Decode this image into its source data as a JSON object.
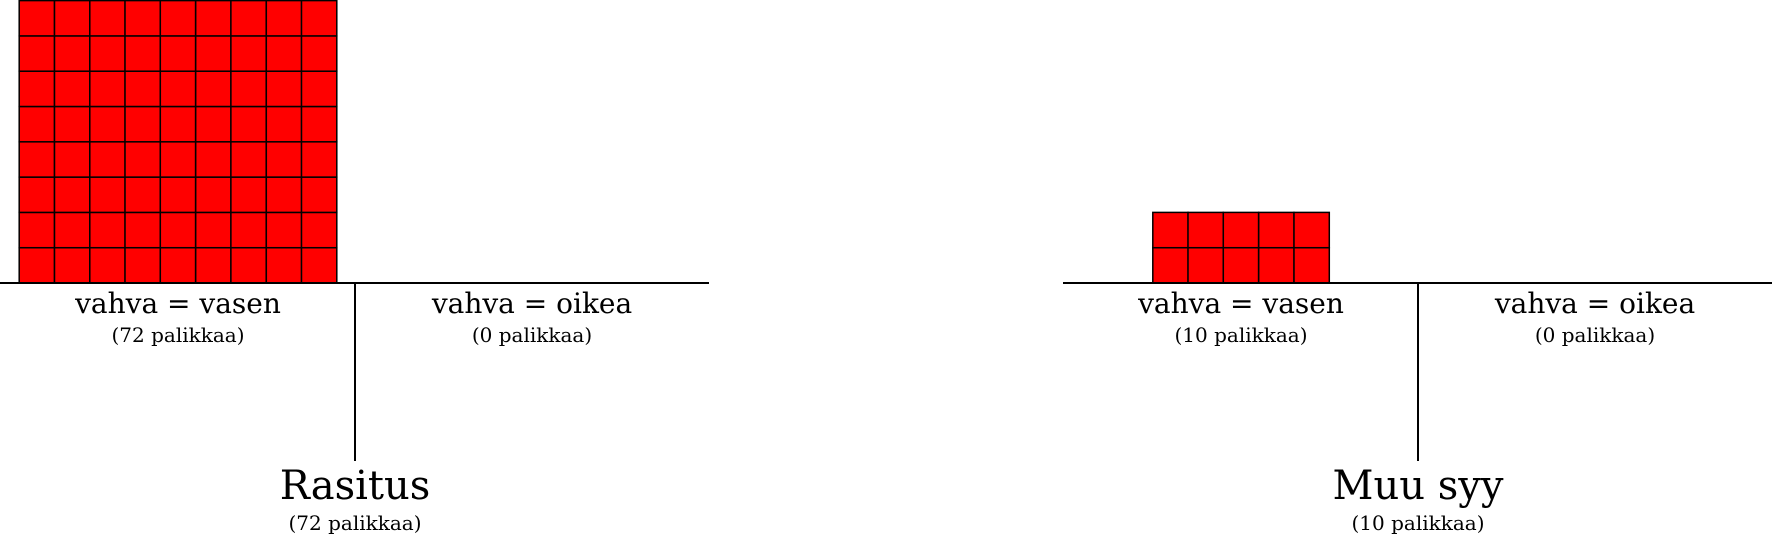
{
  "block_color": "#ff0000",
  "outline_color": "#000000",
  "panels": [
    {
      "name": "rasitus",
      "title": "Rasitus",
      "total_label": "(72 palikkaa)",
      "groups": [
        {
          "side": "left",
          "label": "vahva = vasen",
          "count_label": "(72 palikkaa)",
          "count": 72,
          "columns": 9
        },
        {
          "side": "right",
          "label": "vahva = oikea",
          "count_label": "(0 palikkaa)",
          "count": 0,
          "columns": 9
        }
      ]
    },
    {
      "name": "muu-syy",
      "title": "Muu syy",
      "total_label": "(10 palikkaa)",
      "groups": [
        {
          "side": "left",
          "label": "vahva = vasen",
          "count_label": "(10 palikkaa)",
          "count": 10,
          "columns": 5
        },
        {
          "side": "right",
          "label": "vahva = oikea",
          "count_label": "(0 palikkaa)",
          "count": 0,
          "columns": 5
        }
      ]
    }
  ]
}
